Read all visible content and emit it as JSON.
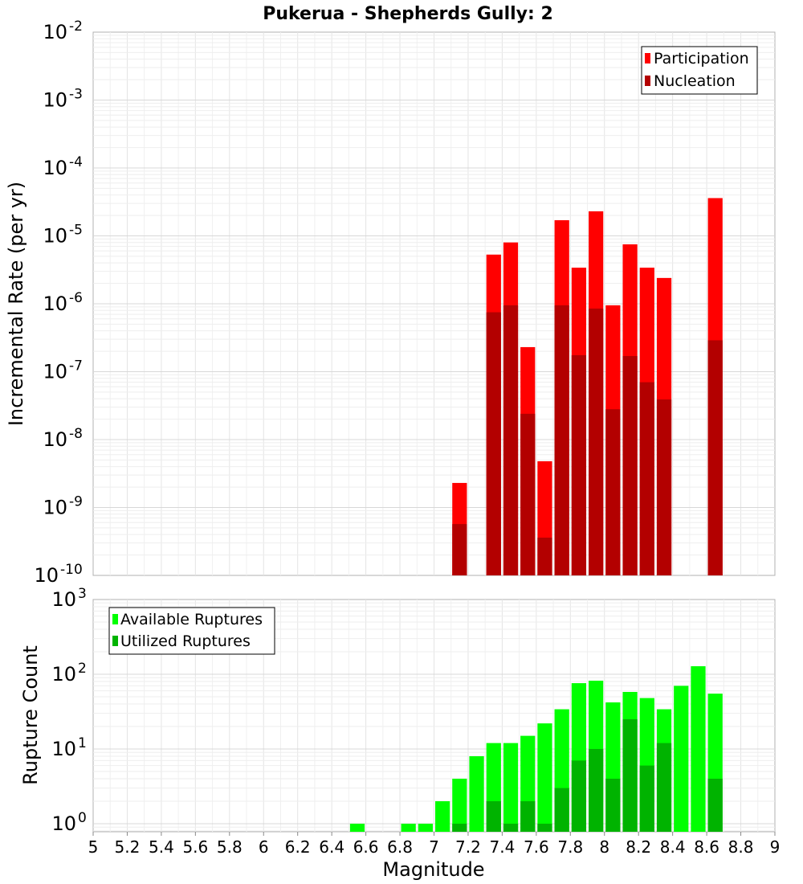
{
  "chart_data": [
    {
      "type": "bar",
      "title": "Pukerua - Shepherds Gully: 2",
      "ylabel": "Incremental Rate (per yr)",
      "xlabel": "",
      "yscale": "log",
      "ylim": [
        1e-10,
        0.01
      ],
      "xlim": [
        5,
        9
      ],
      "bar_width": 0.1,
      "grid": true,
      "legend_position": "top-right",
      "y_ticks": [
        {
          "base": "10",
          "exp": "-10"
        },
        {
          "base": "10",
          "exp": "-9"
        },
        {
          "base": "10",
          "exp": "-8"
        },
        {
          "base": "10",
          "exp": "-7"
        },
        {
          "base": "10",
          "exp": "-6"
        },
        {
          "base": "10",
          "exp": "-5"
        },
        {
          "base": "10",
          "exp": "-4"
        },
        {
          "base": "10",
          "exp": "-3"
        },
        {
          "base": "10",
          "exp": "-2"
        }
      ],
      "series": [
        {
          "name": "Participation",
          "color": "#ff0000",
          "x": [
            7.15,
            7.35,
            7.45,
            7.55,
            7.65,
            7.75,
            7.85,
            7.95,
            8.05,
            8.15,
            8.25,
            8.35,
            8.65
          ],
          "values": [
            2.3e-09,
            5.3e-06,
            8e-06,
            2.3e-07,
            4.8e-09,
            1.7e-05,
            3.4e-06,
            2.3e-05,
            9.5e-07,
            7.5e-06,
            3.4e-06,
            2.4e-06,
            3.6e-05
          ]
        },
        {
          "name": "Nucleation",
          "color": "#b30000",
          "x": [
            7.15,
            7.35,
            7.45,
            7.55,
            7.65,
            7.75,
            7.85,
            7.95,
            8.05,
            8.15,
            8.25,
            8.35,
            8.65
          ],
          "values": [
            5.7e-10,
            7.5e-07,
            9.5e-07,
            2.4e-08,
            3.6e-10,
            9.5e-07,
            1.75e-07,
            8.5e-07,
            2.8e-08,
            1.7e-07,
            7e-08,
            3.9e-08,
            2.9e-07
          ]
        }
      ]
    },
    {
      "type": "bar",
      "title": "",
      "ylabel": "Rupture Count",
      "xlabel": "Magnitude",
      "yscale": "log",
      "ylim": [
        0.78,
        1000
      ],
      "xlim": [
        5,
        9
      ],
      "bar_width": 0.1,
      "grid": true,
      "legend_position": "top-left",
      "y_ticks": [
        {
          "base": "10",
          "exp": "0"
        },
        {
          "base": "10",
          "exp": "1"
        },
        {
          "base": "10",
          "exp": "2"
        },
        {
          "base": "10",
          "exp": "3"
        }
      ],
      "x_ticks": [
        "5",
        "5.2",
        "5.4",
        "5.6",
        "5.8",
        "6",
        "6.2",
        "6.4",
        "6.6",
        "6.8",
        "7",
        "7.2",
        "7.4",
        "7.6",
        "7.8",
        "8",
        "8.2",
        "8.4",
        "8.6",
        "8.8",
        "9"
      ],
      "series": [
        {
          "name": "Available Ruptures",
          "color": "#00ff00",
          "x": [
            6.55,
            6.85,
            6.95,
            7.05,
            7.15,
            7.25,
            7.35,
            7.45,
            7.55,
            7.65,
            7.75,
            7.85,
            7.95,
            8.05,
            8.15,
            8.25,
            8.35,
            8.45,
            8.55,
            8.65
          ],
          "values": [
            1,
            1,
            1,
            2,
            4,
            8,
            12,
            12,
            15,
            22,
            34,
            76,
            82,
            42,
            58,
            48,
            34,
            70,
            128,
            55
          ]
        },
        {
          "name": "Utilized Ruptures",
          "color": "#00b300",
          "x": [
            7.15,
            7.35,
            7.45,
            7.55,
            7.65,
            7.75,
            7.85,
            7.95,
            8.05,
            8.15,
            8.25,
            8.35,
            8.65
          ],
          "values": [
            1,
            2,
            1,
            2,
            1,
            3,
            7,
            10,
            4,
            25,
            6,
            12,
            4
          ]
        }
      ]
    }
  ]
}
